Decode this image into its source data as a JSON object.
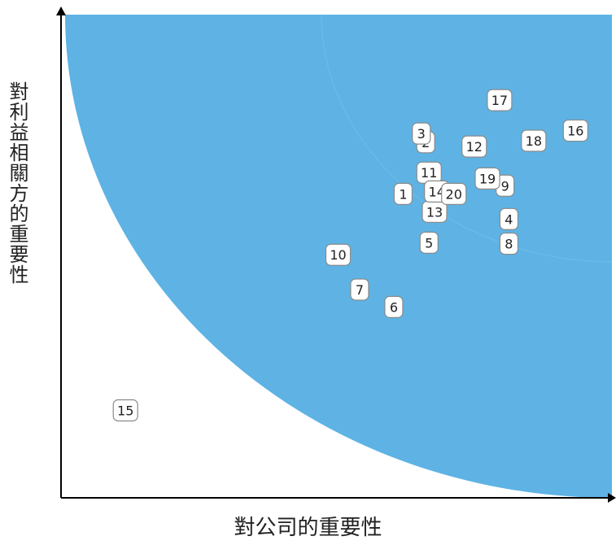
{
  "chart_data": {
    "type": "scatter",
    "title": "",
    "xlabel": "對公司的重要性",
    "ylabel": "對利益相關方的重要性",
    "xlim": [
      0,
      100
    ],
    "ylim": [
      0,
      100
    ],
    "grid": false,
    "colors": {
      "region": "#5EB3E4",
      "inner_ring": "#6FBBE8",
      "box_stroke": "#8a8a8a",
      "box_fill": "#ffffff",
      "axis": "#000000"
    },
    "points": [
      {
        "label": "1",
        "x": 62.1,
        "y": 62.9
      },
      {
        "label": "2",
        "x": 66.2,
        "y": 73.6
      },
      {
        "label": "3",
        "x": 65.4,
        "y": 75.4
      },
      {
        "label": "4",
        "x": 81.3,
        "y": 57.7
      },
      {
        "label": "5",
        "x": 66.8,
        "y": 52.8
      },
      {
        "label": "6",
        "x": 60.4,
        "y": 39.5
      },
      {
        "label": "7",
        "x": 54.2,
        "y": 43.1
      },
      {
        "label": "8",
        "x": 81.3,
        "y": 52.6
      },
      {
        "label": "9",
        "x": 80.6,
        "y": 64.6
      },
      {
        "label": "10",
        "x": 50.3,
        "y": 50.3
      },
      {
        "label": "11",
        "x": 66.8,
        "y": 67.3
      },
      {
        "label": "12",
        "x": 75.0,
        "y": 72.7
      },
      {
        "label": "13",
        "x": 67.8,
        "y": 59.2
      },
      {
        "label": "14",
        "x": 68.2,
        "y": 63.4
      },
      {
        "label": "15",
        "x": 11.7,
        "y": 18.1
      },
      {
        "label": "16",
        "x": 93.4,
        "y": 76.0
      },
      {
        "label": "17",
        "x": 79.6,
        "y": 82.3
      },
      {
        "label": "18",
        "x": 85.8,
        "y": 73.9
      },
      {
        "label": "19",
        "x": 77.4,
        "y": 66.1
      },
      {
        "label": "20",
        "x": 71.3,
        "y": 62.9
      }
    ]
  }
}
